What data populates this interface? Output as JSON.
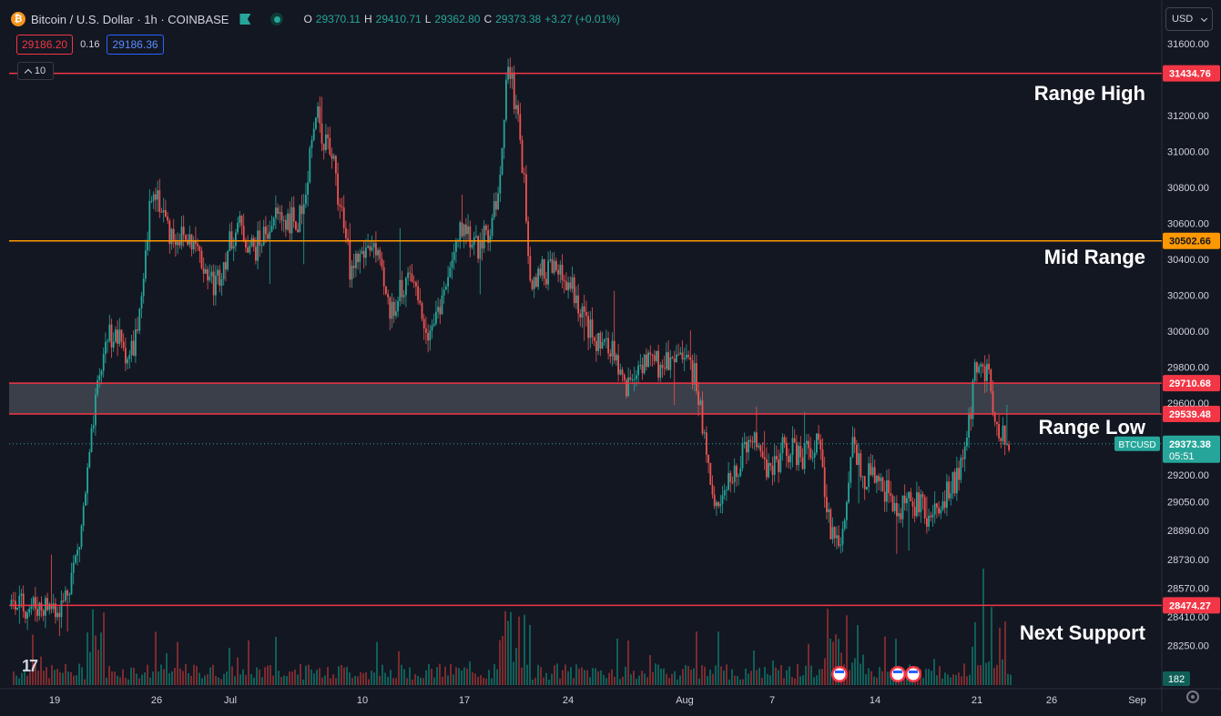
{
  "header": {
    "symbol_title": "Bitcoin / U.S. Dollar · 1h · COINBASE",
    "ohlc": {
      "o_label": "O",
      "o_value": "29370.11",
      "h_label": "H",
      "h_value": "29410.71",
      "l_label": "L",
      "l_value": "29362.80",
      "c_label": "C",
      "c_value": "29373.38",
      "change": "+3.27 (+0.01%)"
    },
    "sell_price": "29186.20",
    "spread": "0.16",
    "buy_price": "29186.36",
    "collapse_count": "10"
  },
  "currency": {
    "selected": "USD"
  },
  "colors": {
    "background": "#131722",
    "up": "#26a69a",
    "down": "#ef5350",
    "red_line": "#f23645",
    "orange_line": "#ff9800",
    "zone_fill": "#434651"
  },
  "chart_data": {
    "type": "candlestick",
    "symbol": "BTCUSD",
    "interval": "1h",
    "y_axis": {
      "ticks": [
        31600,
        31200,
        31000,
        30800,
        30600,
        30400,
        30200,
        30000,
        29800,
        29600,
        29200,
        29050,
        28890,
        28730,
        28570,
        28410,
        28250
      ]
    },
    "x_axis": {
      "ticks": [
        {
          "label": "19"
        },
        {
          "label": "26"
        },
        {
          "label": "Jul"
        },
        {
          "label": "10"
        },
        {
          "label": "17"
        },
        {
          "label": "24"
        },
        {
          "label": "Aug"
        },
        {
          "label": "7"
        },
        {
          "label": "14"
        },
        {
          "label": "21"
        },
        {
          "label": "26"
        },
        {
          "label": "Sep"
        }
      ]
    },
    "levels": [
      {
        "price": 31434.76,
        "label": "31434.76",
        "annotation": "Range High",
        "color": "#f23645"
      },
      {
        "price": 30502.66,
        "label": "30502.66",
        "annotation": "Mid Range",
        "color": "#ff9800"
      },
      {
        "price": 29710.68,
        "label": "29710.68",
        "annotation": "",
        "color": "#f23645"
      },
      {
        "price": 29539.48,
        "label": "29539.48",
        "annotation": "Range Low",
        "color": "#f23645"
      },
      {
        "price": 28474.27,
        "label": "28474.27",
        "annotation": "Next Support",
        "color": "#f23645"
      }
    ],
    "zone": {
      "from": 29539.48,
      "to": 29710.68
    },
    "last_price": {
      "price": 29373.38,
      "label": "29373.38",
      "symbol_tag": "BTCUSD",
      "countdown": "05:51"
    },
    "volume_last_label": "182",
    "price_path": [
      {
        "t": 0.0,
        "p": 28470
      },
      {
        "t": 0.045,
        "p": 28470
      },
      {
        "t": 0.06,
        "p": 28800
      },
      {
        "t": 0.075,
        "p": 29600
      },
      {
        "t": 0.085,
        "p": 30000
      },
      {
        "t": 0.095,
        "p": 29950
      },
      {
        "t": 0.105,
        "p": 29850
      },
      {
        "t": 0.115,
        "p": 30100
      },
      {
        "t": 0.125,
        "p": 30850
      },
      {
        "t": 0.14,
        "p": 30550
      },
      {
        "t": 0.16,
        "p": 30500
      },
      {
        "t": 0.18,
        "p": 30250
      },
      {
        "t": 0.2,
        "p": 30600
      },
      {
        "t": 0.215,
        "p": 30450
      },
      {
        "t": 0.235,
        "p": 30650
      },
      {
        "t": 0.255,
        "p": 30600
      },
      {
        "t": 0.27,
        "p": 31200
      },
      {
        "t": 0.285,
        "p": 30950
      },
      {
        "t": 0.3,
        "p": 30350
      },
      {
        "t": 0.32,
        "p": 30500
      },
      {
        "t": 0.335,
        "p": 30100
      },
      {
        "t": 0.35,
        "p": 30300
      },
      {
        "t": 0.37,
        "p": 30000
      },
      {
        "t": 0.385,
        "p": 30250
      },
      {
        "t": 0.4,
        "p": 30600
      },
      {
        "t": 0.415,
        "p": 30450
      },
      {
        "t": 0.43,
        "p": 30700
      },
      {
        "t": 0.44,
        "p": 31500
      },
      {
        "t": 0.45,
        "p": 31150
      },
      {
        "t": 0.46,
        "p": 30300
      },
      {
        "t": 0.48,
        "p": 30350
      },
      {
        "t": 0.5,
        "p": 30200
      },
      {
        "t": 0.515,
        "p": 29950
      },
      {
        "t": 0.53,
        "p": 29900
      },
      {
        "t": 0.545,
        "p": 29700
      },
      {
        "t": 0.56,
        "p": 29850
      },
      {
        "t": 0.575,
        "p": 29800
      },
      {
        "t": 0.59,
        "p": 29900
      },
      {
        "t": 0.605,
        "p": 29750
      },
      {
        "t": 0.625,
        "p": 29000
      },
      {
        "t": 0.64,
        "p": 29200
      },
      {
        "t": 0.655,
        "p": 29450
      },
      {
        "t": 0.67,
        "p": 29200
      },
      {
        "t": 0.685,
        "p": 29350
      },
      {
        "t": 0.7,
        "p": 29300
      },
      {
        "t": 0.715,
        "p": 29400
      },
      {
        "t": 0.725,
        "p": 28900
      },
      {
        "t": 0.735,
        "p": 28800
      },
      {
        "t": 0.745,
        "p": 29400
      },
      {
        "t": 0.755,
        "p": 29200
      },
      {
        "t": 0.77,
        "p": 29150
      },
      {
        "t": 0.785,
        "p": 29000
      },
      {
        "t": 0.8,
        "p": 29050
      },
      {
        "t": 0.815,
        "p": 28950
      },
      {
        "t": 0.83,
        "p": 29100
      },
      {
        "t": 0.845,
        "p": 29300
      },
      {
        "t": 0.855,
        "p": 29850
      },
      {
        "t": 0.865,
        "p": 29750
      },
      {
        "t": 0.875,
        "p": 29450
      },
      {
        "t": 0.885,
        "p": 29370
      }
    ]
  }
}
